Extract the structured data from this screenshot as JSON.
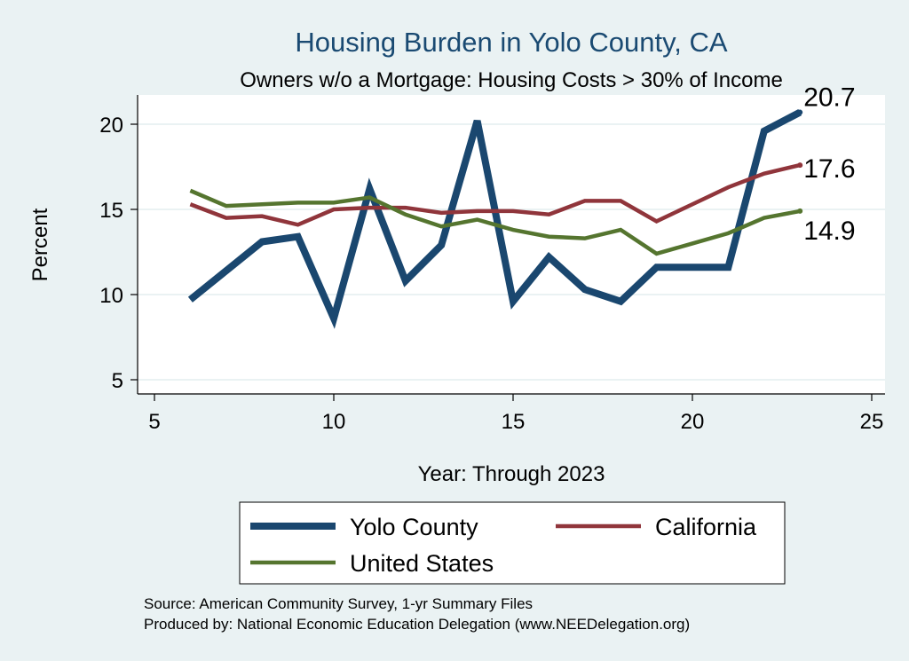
{
  "chart_data": {
    "type": "line",
    "title": "Housing Burden in Yolo County, CA",
    "subtitle": "Owners w/o a Mortgage: Housing Costs > 30% of Income",
    "xlabel": "Year: Through 2023",
    "ylabel": "Percent",
    "xlim": [
      5,
      25
    ],
    "ylim": [
      4,
      21.5
    ],
    "xticks": [
      5,
      10,
      15,
      20,
      25
    ],
    "yticks": [
      5,
      10,
      15,
      20
    ],
    "grid": true,
    "series": [
      {
        "name": "Yolo County",
        "color": "#1a476f",
        "x": [
          6,
          7,
          8,
          9,
          10,
          11,
          12,
          13,
          14,
          15,
          16,
          17,
          18,
          19,
          20,
          21,
          22,
          23
        ],
        "values": [
          9.7,
          11.4,
          13.1,
          13.4,
          8.6,
          16.2,
          10.8,
          12.9,
          20.2,
          9.6,
          12.2,
          10.3,
          9.6,
          11.6,
          11.6,
          11.6,
          19.6,
          20.7
        ],
        "end_label": "20.7"
      },
      {
        "name": "California",
        "color": "#90353b",
        "x": [
          6,
          7,
          8,
          9,
          10,
          11,
          12,
          13,
          14,
          15,
          16,
          17,
          18,
          19,
          20,
          21,
          22,
          23
        ],
        "values": [
          15.3,
          14.5,
          14.6,
          14.1,
          15.0,
          15.1,
          15.1,
          14.8,
          14.9,
          14.9,
          14.7,
          15.5,
          15.5,
          14.3,
          15.3,
          16.3,
          17.1,
          17.6
        ],
        "end_label": "17.6"
      },
      {
        "name": "United States",
        "color": "#55752f",
        "x": [
          6,
          7,
          8,
          9,
          10,
          11,
          12,
          13,
          14,
          15,
          16,
          17,
          18,
          19,
          20,
          21,
          22,
          23
        ],
        "values": [
          16.1,
          15.2,
          15.3,
          15.4,
          15.4,
          15.7,
          14.7,
          14.0,
          14.4,
          13.8,
          13.4,
          13.3,
          13.8,
          12.4,
          13.0,
          13.6,
          14.5,
          14.9
        ],
        "end_label": "14.9"
      }
    ],
    "legend": {
      "position": "bottom",
      "items": [
        "Yolo County",
        "California",
        "United States"
      ]
    },
    "source_lines": [
      "Source: American Community Survey, 1-yr Summary Files",
      "Produced by: National Economic Education Delegation (www.NEEDelegation.org)"
    ]
  }
}
